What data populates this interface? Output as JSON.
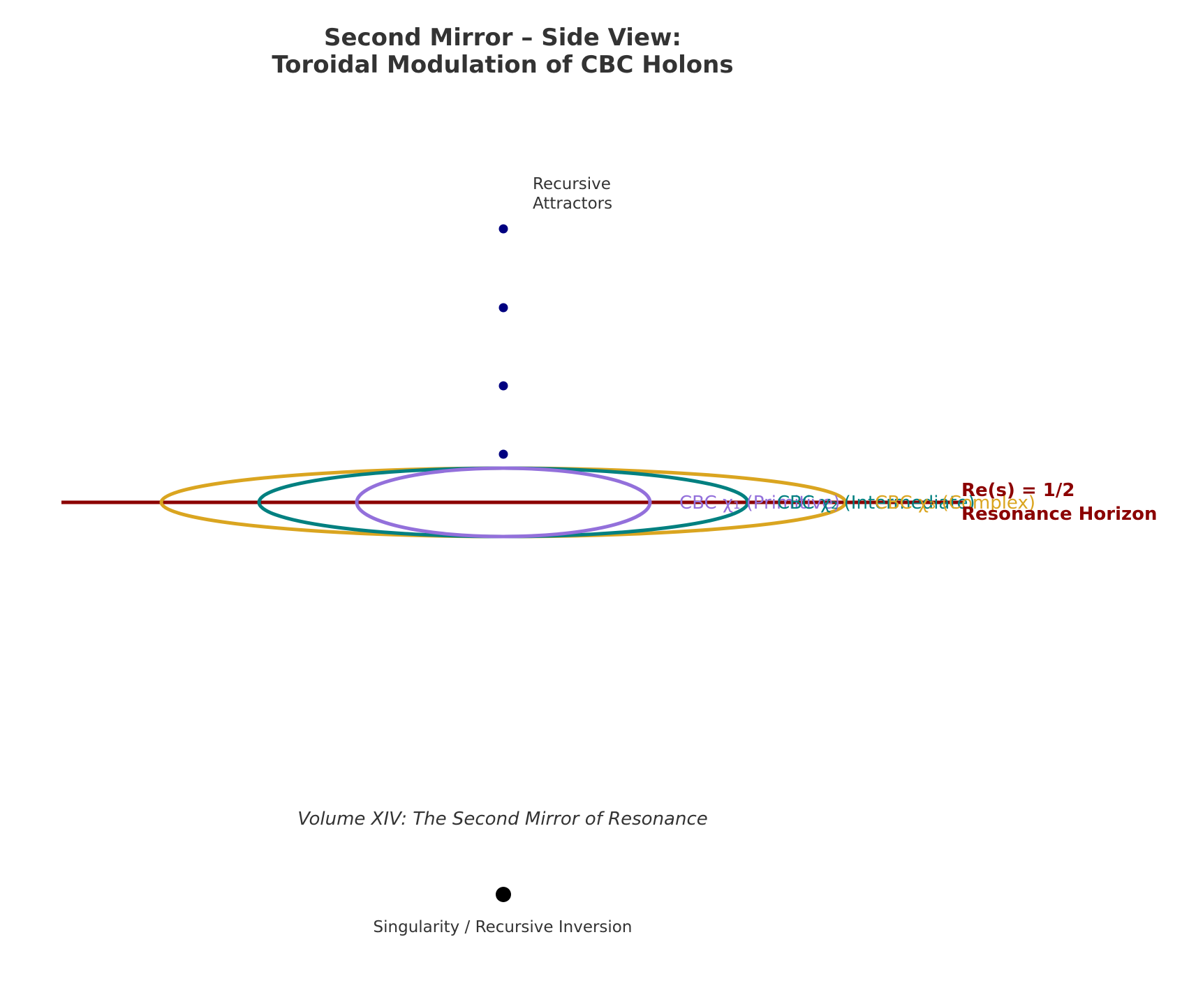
{
  "title": {
    "line1": "Second Mirror – Side View:",
    "line2": "Toroidal Modulation of CBC Holons"
  },
  "colors": {
    "text": "#333333",
    "horizon": "#8b0000",
    "attractor": "#000080",
    "singularity": "#000000",
    "ellipse_primitive": "#9370db",
    "ellipse_intermediate": "#008080",
    "ellipse_complex": "#daa520"
  },
  "horizon": {
    "label_line1": "Re(s) = 1/2",
    "label_line2": "Resonance Horizon"
  },
  "holons": [
    {
      "label": "CBC χ₁ (Primitive)",
      "color_key": "ellipse_primitive"
    },
    {
      "label": "CBC χ₂ (Intermediate)",
      "color_key": "ellipse_intermediate"
    },
    {
      "label": "CBC χ₃ (Complex)",
      "color_key": "ellipse_complex"
    }
  ],
  "attractors": {
    "label_line1": "Recursive",
    "label_line2": "Attractors",
    "count": 4
  },
  "subtitle": "Volume XIV: The Second Mirror of Resonance",
  "singularity": {
    "label": "Singularity / Recursive Inversion"
  }
}
